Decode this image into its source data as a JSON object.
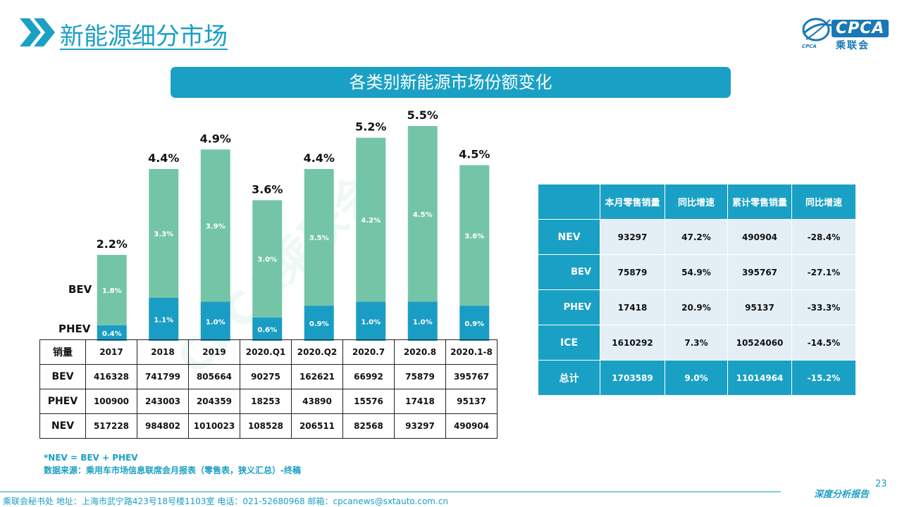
{
  "header": {
    "title": "新能源细分市场"
  },
  "logo": {
    "brand": "CPCA",
    "name_cn": "乘联会",
    "sub": "CPCA"
  },
  "banner": {
    "title": "各类别新能源市场份额变化"
  },
  "colors": {
    "accent": "#1aa0c4",
    "bev": "#74c5a8",
    "phev": "#1a9dc4"
  },
  "chart_data": {
    "type": "bar",
    "stacked": true,
    "categories": [
      "2017",
      "2018",
      "2019",
      "2020.Q1",
      "2020.Q2",
      "2020.7",
      "2020.8",
      "2020.1-8"
    ],
    "series": [
      {
        "name": "PHEV",
        "values": [
          0.4,
          1.1,
          1.0,
          0.6,
          0.9,
          1.0,
          1.0,
          0.9
        ],
        "labels": [
          "0.4%",
          "1.1%",
          "1.0%",
          "0.6%",
          "0.9%",
          "1.0%",
          "1.0%",
          "0.9%"
        ]
      },
      {
        "name": "BEV",
        "values": [
          1.8,
          3.3,
          3.9,
          3.0,
          3.5,
          4.2,
          4.5,
          3.6
        ],
        "labels": [
          "1.8%",
          "3.3%",
          "3.9%",
          "3.0%",
          "3.5%",
          "4.2%",
          "4.5%",
          "3.6%"
        ]
      }
    ],
    "totals": [
      2.2,
      4.4,
      4.9,
      3.6,
      4.4,
      5.2,
      5.5,
      4.5
    ],
    "total_labels": [
      "2.2%",
      "4.4%",
      "4.9%",
      "3.6%",
      "4.4%",
      "5.2%",
      "5.5%",
      "4.5%"
    ],
    "ylim": [
      0,
      5.5
    ],
    "grid": false
  },
  "series_labels": {
    "bev": "BEV",
    "phev": "PHEV"
  },
  "sales_table": {
    "corner": "销量",
    "columns": [
      "2017",
      "2018",
      "2019",
      "2020.Q1",
      "2020.Q2",
      "2020.7",
      "2020.8",
      "2020.1-8"
    ],
    "rows": [
      {
        "name": "BEV",
        "values": [
          "416328",
          "741799",
          "805664",
          "90275",
          "162621",
          "66992",
          "75879",
          "395767"
        ]
      },
      {
        "name": "PHEV",
        "values": [
          "100900",
          "243003",
          "204359",
          "18253",
          "43890",
          "15576",
          "17418",
          "95137"
        ]
      },
      {
        "name": "NEV",
        "values": [
          "517228",
          "984802",
          "1010023",
          "108528",
          "206511",
          "82568",
          "93297",
          "490904"
        ]
      }
    ]
  },
  "summary_table": {
    "headers": [
      "本月零售销量",
      "同比增速",
      "累计零售销量",
      "同比增速"
    ],
    "rows": [
      {
        "name": "NEV",
        "values": [
          "93297",
          "47.2%",
          "490904",
          "-28.4%"
        ]
      },
      {
        "name": "BEV",
        "values": [
          "75879",
          "54.9%",
          "395767",
          "-27.1%"
        ]
      },
      {
        "name": "PHEV",
        "values": [
          "17418",
          "20.9%",
          "95137",
          "-33.3%"
        ]
      },
      {
        "name": "ICE",
        "values": [
          "1610292",
          "7.3%",
          "10524060",
          "-14.5%"
        ]
      },
      {
        "name": "总计",
        "values": [
          "1703589",
          "9.0%",
          "11014964",
          "-15.2%"
        ]
      }
    ]
  },
  "footnotes": {
    "formula": "*NEV = BEV + PHEV",
    "source": "数据来源：乘用车市场信息联席会月报表（零售表，狭义汇总）-终稿"
  },
  "watermark": {
    "text": "CPCA乘联会"
  },
  "footer": {
    "text": "乘联会秘书处   地址：上海市武宁路423号18号楼1103室   电话：021-52680968   邮箱：cpcanews@sxtauto.com.cn",
    "tag": "深度分析报告",
    "page": "23"
  }
}
